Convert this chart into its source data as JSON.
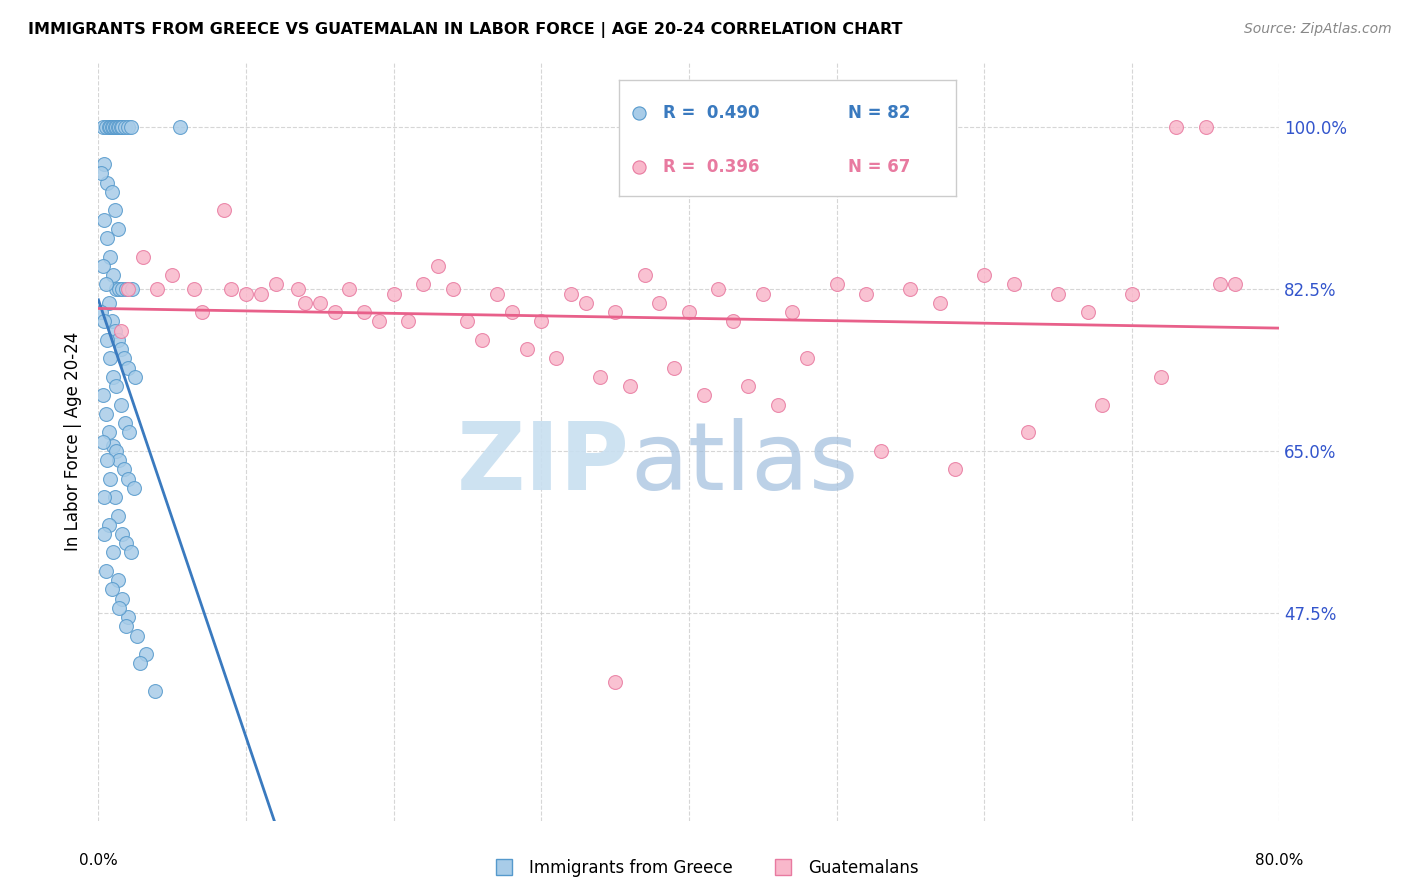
{
  "title": "IMMIGRANTS FROM GREECE VS GUATEMALAN IN LABOR FORCE | AGE 20-24 CORRELATION CHART",
  "source_text": "Source: ZipAtlas.com",
  "ylabel": "In Labor Force | Age 20-24",
  "xlim": [
    0.0,
    80.0
  ],
  "ylim": [
    25.0,
    107.0
  ],
  "yticks": [
    47.5,
    65.0,
    82.5,
    100.0
  ],
  "ytick_labels": [
    "47.5%",
    "65.0%",
    "82.5%",
    "100.0%"
  ],
  "legend_r_blue": "R =  0.490",
  "legend_n_blue": "N = 82",
  "legend_r_pink": "R =  0.396",
  "legend_n_pink": "N = 67",
  "legend_label_blue": "Immigrants from Greece",
  "legend_label_pink": "Guatemalans",
  "blue_color": "#a8cce8",
  "pink_color": "#f9b8cb",
  "blue_edge_color": "#5599cc",
  "pink_edge_color": "#e87aa0",
  "blue_line_color": "#3a7abf",
  "pink_line_color": "#e8608a",
  "right_label_color": "#3355cc",
  "watermark_zip_color": "#c8dff0",
  "watermark_atlas_color": "#a0bedd",
  "blue_x": [
    0.3,
    0.5,
    0.7,
    0.8,
    0.9,
    1.0,
    1.1,
    1.2,
    1.3,
    1.4,
    1.5,
    1.6,
    1.8,
    2.0,
    2.2,
    0.4,
    0.6,
    0.9,
    1.1,
    1.3,
    0.2,
    0.4,
    0.6,
    0.8,
    1.0,
    1.2,
    1.4,
    1.6,
    1.9,
    2.3,
    0.3,
    0.5,
    0.7,
    0.9,
    1.1,
    1.3,
    1.5,
    1.7,
    2.0,
    2.5,
    0.2,
    0.4,
    0.6,
    0.8,
    1.0,
    1.2,
    1.5,
    1.8,
    2.1,
    0.3,
    0.5,
    0.7,
    1.0,
    1.2,
    1.4,
    1.7,
    2.0,
    2.4,
    0.3,
    0.6,
    0.8,
    1.1,
    1.3,
    1.6,
    1.9,
    2.2,
    0.4,
    0.7,
    1.0,
    1.3,
    1.6,
    2.0,
    2.6,
    3.2,
    0.5,
    0.9,
    1.4,
    1.9,
    2.8,
    3.8,
    0.4,
    5.5
  ],
  "blue_y": [
    100.0,
    100.0,
    100.0,
    100.0,
    100.0,
    100.0,
    100.0,
    100.0,
    100.0,
    100.0,
    100.0,
    100.0,
    100.0,
    100.0,
    100.0,
    96.0,
    94.0,
    93.0,
    91.0,
    89.0,
    95.0,
    90.0,
    88.0,
    86.0,
    84.0,
    82.5,
    82.5,
    82.5,
    82.5,
    82.5,
    85.0,
    83.0,
    81.0,
    79.0,
    78.0,
    77.0,
    76.0,
    75.0,
    74.0,
    73.0,
    80.0,
    79.0,
    77.0,
    75.0,
    73.0,
    72.0,
    70.0,
    68.0,
    67.0,
    71.0,
    69.0,
    67.0,
    65.5,
    65.0,
    64.0,
    63.0,
    62.0,
    61.0,
    66.0,
    64.0,
    62.0,
    60.0,
    58.0,
    56.0,
    55.0,
    54.0,
    60.0,
    57.0,
    54.0,
    51.0,
    49.0,
    47.0,
    45.0,
    43.0,
    52.0,
    50.0,
    48.0,
    46.0,
    42.0,
    39.0,
    56.0,
    100.0
  ],
  "pink_x": [
    1.5,
    3.0,
    5.0,
    7.0,
    8.5,
    10.0,
    12.0,
    13.5,
    15.0,
    17.0,
    18.0,
    20.0,
    22.0,
    24.0,
    25.0,
    27.0,
    28.0,
    30.0,
    32.0,
    33.0,
    35.0,
    37.0,
    38.0,
    40.0,
    42.0,
    43.0,
    45.0,
    47.0,
    50.0,
    52.0,
    55.0,
    57.0,
    60.0,
    62.0,
    65.0,
    67.0,
    70.0,
    73.0,
    75.0,
    77.0,
    2.0,
    4.0,
    6.5,
    9.0,
    11.0,
    14.0,
    16.0,
    19.0,
    21.0,
    23.0,
    26.0,
    29.0,
    31.0,
    34.0,
    36.0,
    39.0,
    41.0,
    44.0,
    46.0,
    48.0,
    53.0,
    58.0,
    63.0,
    68.0,
    72.0,
    76.0,
    35.0
  ],
  "pink_y": [
    78.0,
    86.0,
    84.0,
    80.0,
    91.0,
    82.0,
    83.0,
    82.5,
    81.0,
    82.5,
    80.0,
    82.0,
    83.0,
    82.5,
    79.0,
    82.0,
    80.0,
    79.0,
    82.0,
    81.0,
    80.0,
    84.0,
    81.0,
    80.0,
    82.5,
    79.0,
    82.0,
    80.0,
    83.0,
    82.0,
    82.5,
    81.0,
    84.0,
    83.0,
    82.0,
    80.0,
    82.0,
    100.0,
    100.0,
    83.0,
    82.5,
    82.5,
    82.5,
    82.5,
    82.0,
    81.0,
    80.0,
    79.0,
    79.0,
    85.0,
    77.0,
    76.0,
    75.0,
    73.0,
    72.0,
    74.0,
    71.0,
    72.0,
    70.0,
    75.0,
    65.0,
    63.0,
    67.0,
    70.0,
    73.0,
    83.0,
    40.0
  ]
}
